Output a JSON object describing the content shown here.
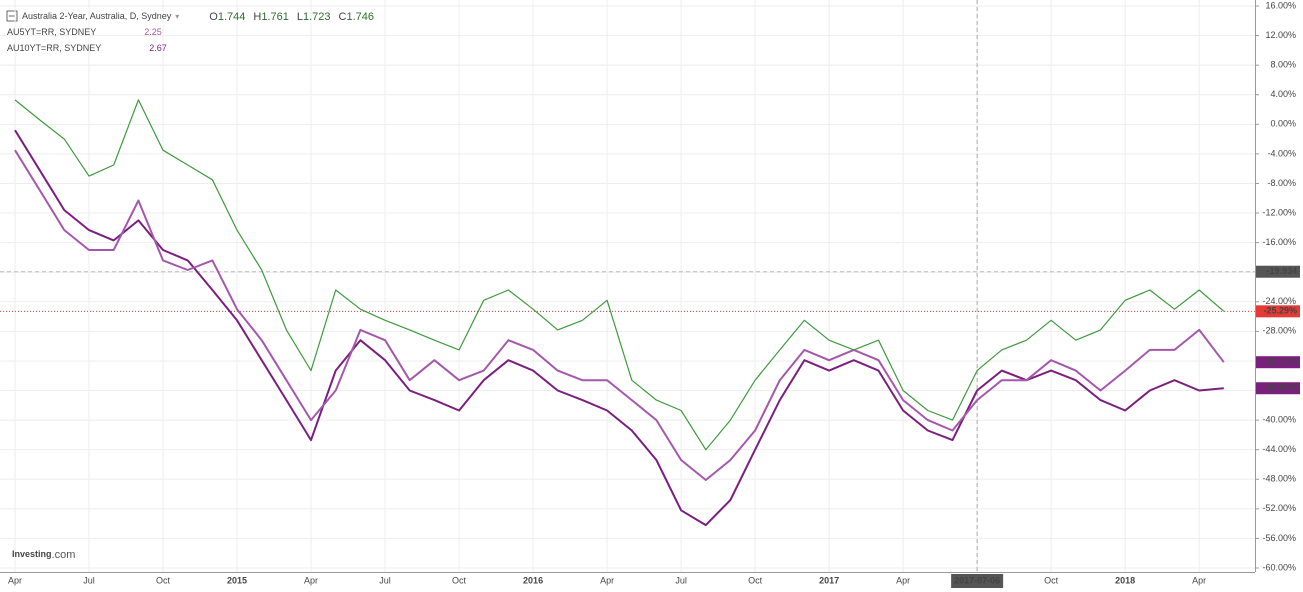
{
  "chart_data": {
    "type": "line",
    "title": "Australia 2-Year, Australia, D, Sydney",
    "ohlc": [
      {
        "label": "O",
        "value": 1.744
      },
      {
        "label": "H",
        "value": 1.761
      },
      {
        "label": "L",
        "value": 1.723
      },
      {
        "label": "C",
        "value": 1.746
      }
    ],
    "logo": "Investing",
    "logo_suffix": ".com",
    "categories": [
      "Apr",
      null,
      null,
      "Jul",
      null,
      null,
      "Oct",
      null,
      null,
      "2015",
      null,
      null,
      "Apr",
      null,
      null,
      "Jul",
      null,
      null,
      "Oct",
      null,
      null,
      "2016",
      null,
      null,
      "Apr",
      null,
      null,
      "Jul",
      null,
      null,
      "Oct",
      null,
      null,
      "2017",
      null,
      null,
      "Apr",
      null,
      null,
      "2017-07-06",
      null,
      null,
      "Oct",
      null,
      null,
      "2018",
      null,
      null,
      "Apr",
      null
    ],
    "series": [
      {
        "name": "Australia 2-Year, Australia, D, Sydney",
        "color": "#3f9a3f",
        "label_color": "#e53935",
        "values": [
          3.3,
          0.6,
          -2,
          -7,
          -5.5,
          3.3,
          -3.5,
          -5.5,
          -7.5,
          -14.3,
          -19.7,
          -27.8,
          -33.3,
          -22.4,
          -25,
          -26.5,
          -27.8,
          -29.2,
          -30.5,
          -23.8,
          -22.4,
          -25,
          -27.8,
          -26.5,
          -23.8,
          -34.6,
          -37.3,
          -38.7,
          -44,
          -40,
          -34.6,
          -30.5,
          -26.5,
          -29.2,
          -30.5,
          -29.2,
          -36,
          -38.7,
          -40,
          -33.3,
          -30.5,
          -29.2,
          -26.5,
          -29.2,
          -27.8,
          -23.8,
          -22.4,
          -25,
          -22.4,
          -25.29
        ],
        "value_labels": [
          null,
          null,
          null,
          null,
          null,
          null,
          null,
          null,
          null,
          null,
          null,
          null,
          null,
          null,
          null,
          null,
          null,
          null,
          null,
          null,
          null,
          null,
          null,
          null,
          null,
          null,
          null,
          null,
          null,
          null,
          null,
          null,
          null,
          null,
          null,
          null,
          null,
          null,
          null,
          null,
          null,
          null,
          null,
          null,
          null,
          null,
          null,
          null,
          null,
          "-25.29%"
        ]
      },
      {
        "name": "AU5YT=RR, SYDNEY",
        "legend_value": 2.25,
        "color": "#a458ab",
        "label_color": "#7b1f7f",
        "values": [
          -3.5,
          -8.9,
          -14.3,
          -17,
          -17,
          -10.3,
          -18.4,
          -19.7,
          -18.4,
          -25,
          -29.2,
          -34.6,
          -40,
          -36,
          -27.8,
          -29.2,
          -34.6,
          -31.9,
          -34.6,
          -33.3,
          -29.2,
          -30.5,
          -33.3,
          -34.6,
          -34.6,
          -37.3,
          -40,
          -45.4,
          -48.1,
          -45.4,
          -41.4,
          -34.6,
          -30.5,
          -31.9,
          -30.5,
          -31.9,
          -37.3,
          -40,
          -41.4,
          -37.3,
          -34.6,
          -34.6,
          -31.9,
          -33.3,
          -36,
          -33.3,
          -30.5,
          -30.5,
          -27.8,
          -32.17
        ],
        "value_labels": [
          null,
          null,
          null,
          null,
          null,
          null,
          null,
          null,
          null,
          null,
          null,
          null,
          null,
          null,
          null,
          null,
          null,
          null,
          null,
          null,
          null,
          null,
          null,
          null,
          null,
          null,
          null,
          null,
          null,
          null,
          null,
          null,
          null,
          null,
          null,
          null,
          null,
          null,
          null,
          null,
          null,
          null,
          null,
          null,
          null,
          null,
          null,
          null,
          null,
          "-32.17%"
        ]
      },
      {
        "name": "AU10YT=RR, SYDNEY",
        "legend_value": 2.67,
        "color": "#7b1f7f",
        "label_color": "#7b1f7f",
        "values": [
          -0.8,
          -6.2,
          -11.6,
          -14.3,
          -15.7,
          -13,
          -17,
          -18.4,
          -22.4,
          -26.5,
          -31.9,
          -37.3,
          -42.7,
          -33.3,
          -29.2,
          -31.9,
          -36,
          -37.3,
          -38.7,
          -34.6,
          -31.9,
          -33.3,
          -36,
          -37.3,
          -38.7,
          -41.4,
          -45.4,
          -52.2,
          -54.2,
          -50.8,
          -44,
          -37.3,
          -31.9,
          -33.3,
          -31.9,
          -33.3,
          -38.7,
          -41.4,
          -42.7,
          -36,
          -33.3,
          -34.6,
          -33.3,
          -34.6,
          -37.3,
          -38.7,
          -36,
          -34.6,
          -36,
          -35.69
        ],
        "value_labels": [
          null,
          null,
          null,
          null,
          null,
          null,
          null,
          null,
          null,
          null,
          null,
          null,
          null,
          null,
          null,
          null,
          null,
          null,
          null,
          null,
          null,
          null,
          null,
          null,
          null,
          null,
          null,
          null,
          null,
          null,
          null,
          null,
          null,
          null,
          null,
          null,
          null,
          null,
          null,
          null,
          null,
          null,
          null,
          null,
          null,
          null,
          null,
          null,
          null,
          "-35.69%"
        ]
      }
    ],
    "ylim": [
      16,
      -60
    ],
    "yticks": [
      {
        "value": 16,
        "label": "16.00%"
      },
      {
        "value": 12,
        "label": "12.00%"
      },
      {
        "value": 8,
        "label": "8.00%"
      },
      {
        "value": 4,
        "label": "4.00%"
      },
      {
        "value": 0,
        "label": "0.00%"
      },
      {
        "value": -4,
        "label": "-4.00%"
      },
      {
        "value": -8,
        "label": "-8.00%"
      },
      {
        "value": -12,
        "label": "-12.00%"
      },
      {
        "value": -16,
        "label": "-16.00%"
      },
      {
        "value": -20,
        "label": "-20.00%"
      },
      {
        "value": -24,
        "label": "-24.00%"
      },
      {
        "value": -28,
        "label": "-28.00%"
      },
      {
        "value": -32,
        "label": "-32.00%"
      },
      {
        "value": -36,
        "label": "-36.00%"
      },
      {
        "value": -40,
        "label": "-40.00%"
      },
      {
        "value": -44,
        "label": "-44.00%"
      },
      {
        "value": -48,
        "label": "-48.00%"
      },
      {
        "value": -52,
        "label": "-52.00%"
      },
      {
        "value": -56,
        "label": "-56.00%"
      },
      {
        "value": -60,
        "label": "-60.00%"
      }
    ],
    "crosshair": {
      "index": 39,
      "y": -19.934
    },
    "grid": true
  }
}
